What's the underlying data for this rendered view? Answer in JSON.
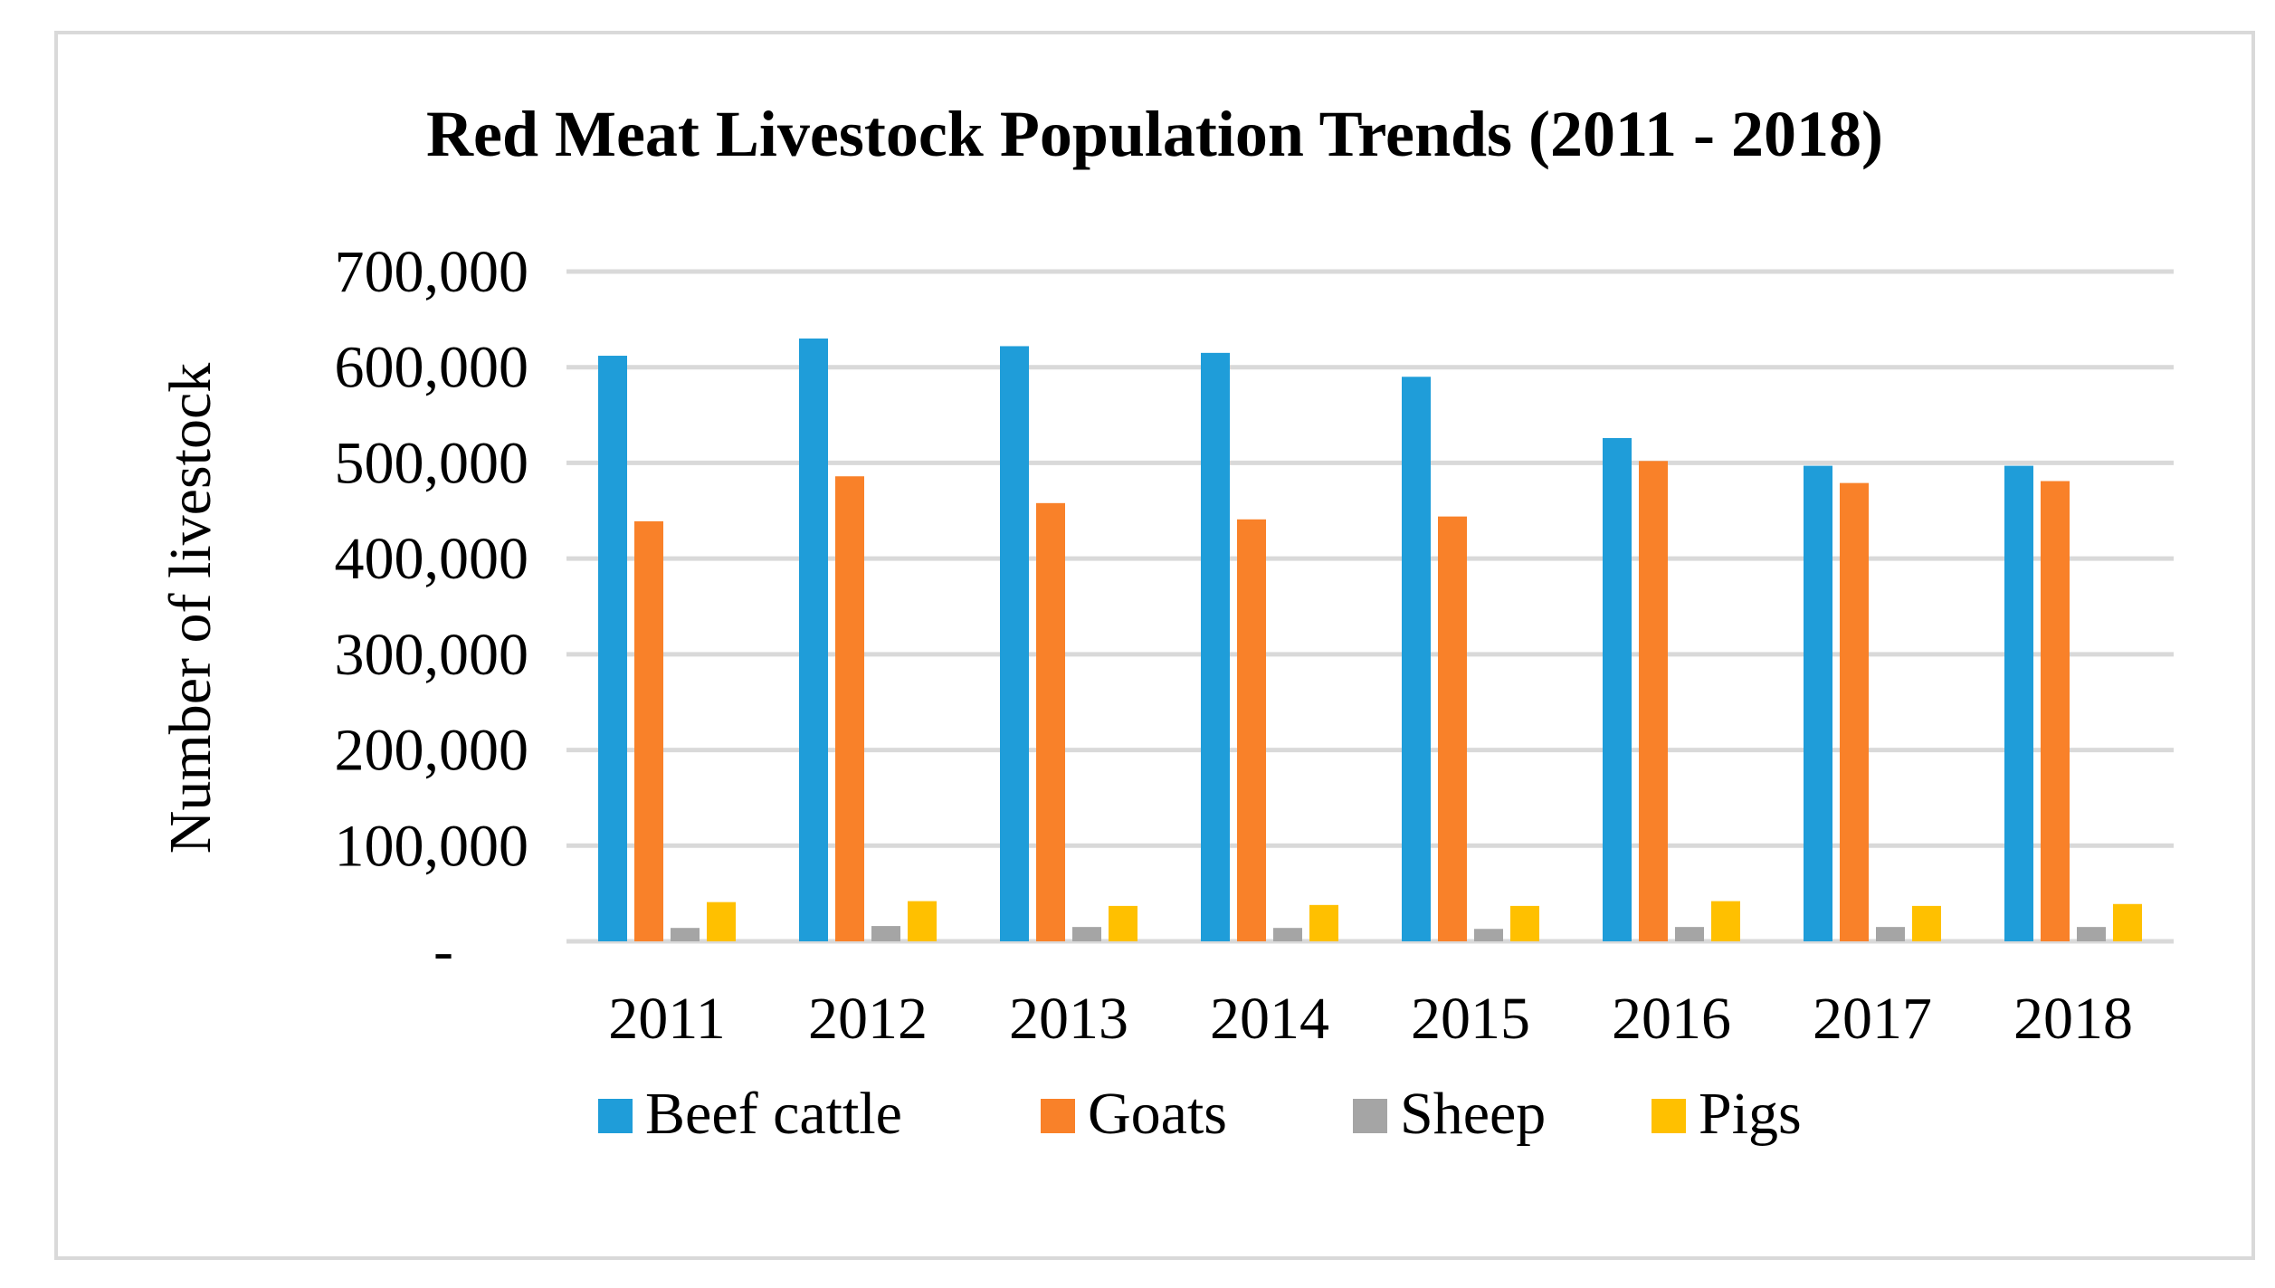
{
  "chart_data": {
    "type": "bar",
    "title": "Red Meat Livestock Population Trends (2011 - 2018)",
    "xlabel": "",
    "ylabel": "Number of livestock",
    "ylim": [
      0,
      700000
    ],
    "yticks": [
      0,
      100000,
      200000,
      300000,
      400000,
      500000,
      600000,
      700000
    ],
    "ytick_labels": [
      "-",
      "100,000",
      "200,000",
      "300,000",
      "400,000",
      "500,000",
      "600,000",
      "700,000"
    ],
    "grid": true,
    "legend_position": "bottom",
    "categories": [
      "2011",
      "2012",
      "2013",
      "2014",
      "2015",
      "2016",
      "2017",
      "2018"
    ],
    "series": [
      {
        "name": "Beef cattle",
        "color": "#1f9dd9",
        "values": [
          612000,
          630000,
          622000,
          615000,
          590000,
          526000,
          497000,
          497000
        ]
      },
      {
        "name": "Goats",
        "color": "#f98129",
        "values": [
          439000,
          486000,
          458000,
          441000,
          444000,
          502000,
          479000,
          481000
        ]
      },
      {
        "name": "Sheep",
        "color": "#a5a5a5",
        "values": [
          14000,
          16000,
          15000,
          14000,
          13000,
          15000,
          15000,
          15000
        ]
      },
      {
        "name": "Pigs",
        "color": "#ffc000",
        "values": [
          41000,
          42000,
          37000,
          38000,
          37000,
          42000,
          37000,
          39000
        ]
      }
    ]
  }
}
